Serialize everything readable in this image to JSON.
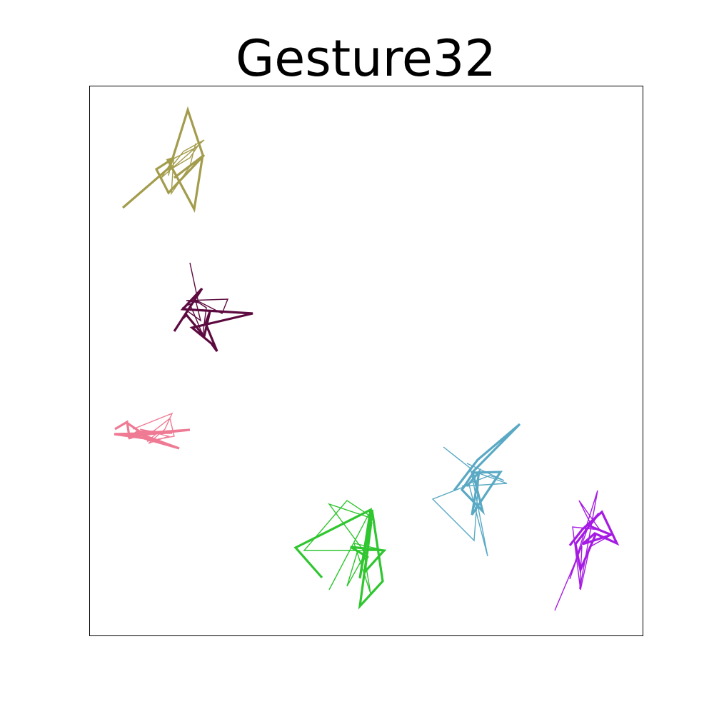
{
  "chart_data": {
    "type": "line",
    "title": "Gesture32",
    "xlabel": "",
    "ylabel": "",
    "grid": false,
    "axes_ticks": false,
    "xlim": [
      0,
      775
    ],
    "ylim": [
      770,
      0
    ],
    "series": [
      {
        "color": "#a39c4c",
        "strokes": [
          {
            "w": 3.2,
            "points": [
              [
                46,
                170
              ],
              [
                112,
                113
              ],
              [
                137,
                33
              ],
              [
                158,
                96
              ],
              [
                146,
                172
              ],
              [
                109,
                103
              ],
              [
                118,
                100
              ],
              [
                93,
                116
              ],
              [
                110,
                149
              ],
              [
                160,
                96
              ],
              [
                118,
                128
              ]
            ]
          },
          {
            "w": 1.4,
            "points": [
              [
                118,
                100
              ],
              [
                100,
                128
              ],
              [
                160,
                75
              ],
              [
                131,
                91
              ],
              [
                110,
                118
              ],
              [
                140,
                100
              ],
              [
                150,
                85
              ],
              [
                113,
                103
              ],
              [
                110,
                125
              ],
              [
                118,
                90
              ],
              [
                114,
                150
              ],
              [
                140,
                112
              ],
              [
                148,
                80
              ]
            ]
          }
        ]
      },
      {
        "color": "#5c0a40",
        "strokes": [
          {
            "w": 3.2,
            "points": [
              [
                118,
                343
              ],
              [
                157,
                283
              ],
              [
                130,
                312
              ],
              [
                228,
                318
              ],
              [
                143,
                338
              ],
              [
                170,
                360
              ],
              [
                178,
                371
              ],
              [
                162,
                332
              ],
              [
                168,
                315
              ],
              [
                160,
                350
              ],
              [
                135,
                320
              ],
              [
                130,
                325
              ]
            ]
          },
          {
            "w": 1.4,
            "points": [
              [
                140,
                247
              ],
              [
                152,
                303
              ],
              [
                135,
                300
              ],
              [
                193,
                298
              ],
              [
                185,
                318
              ],
              [
                150,
                300
              ],
              [
                130,
                310
              ],
              [
                155,
                328
              ],
              [
                148,
                300
              ],
              [
                163,
                310
              ],
              [
                158,
                348
              ],
              [
                140,
                305
              ]
            ]
          }
        ]
      },
      {
        "color": "#ef7a94",
        "strokes": [
          {
            "w": 3.2,
            "points": [
              [
                35,
                480
              ],
              [
                52,
                470
              ],
              [
                55,
                490
              ],
              [
                140,
                481
              ],
              [
                55,
                487
              ],
              [
                125,
                507
              ],
              [
                65,
                485
              ],
              [
                85,
                494
              ],
              [
                34,
                487
              ],
              [
                115,
                485
              ],
              [
                67,
                483
              ],
              [
                54,
                493
              ],
              [
                75,
                487
              ],
              [
                50,
                470
              ]
            ]
          },
          {
            "w": 1.4,
            "points": [
              [
                60,
                480
              ],
              [
                115,
                458
              ],
              [
                105,
                480
              ],
              [
                82,
                500
              ],
              [
                110,
                490
              ],
              [
                70,
                480
              ],
              [
                95,
                485
              ],
              [
                80,
                497
              ],
              [
                118,
                490
              ],
              [
                112,
                465
              ],
              [
                90,
                482
              ],
              [
                65,
                492
              ]
            ]
          }
        ]
      },
      {
        "color": "#2fc62f",
        "strokes": [
          {
            "w": 3.2,
            "points": [
              [
                325,
                688
              ],
              [
                288,
                646
              ],
              [
                393,
                593
              ],
              [
                378,
                689
              ],
              [
                395,
                593
              ],
              [
                410,
                693
              ],
              [
                378,
                728
              ],
              [
                394,
                610
              ],
              [
                385,
                680
              ],
              [
                412,
                650
              ],
              [
                365,
                645
              ],
              [
                390,
                660
              ]
            ]
          },
          {
            "w": 1.4,
            "points": [
              [
                335,
                705
              ],
              [
                390,
                600
              ],
              [
                360,
                580
              ],
              [
                300,
                650
              ],
              [
                414,
                650
              ],
              [
                370,
                640
              ],
              [
                393,
                710
              ],
              [
                383,
                650
              ],
              [
                335,
                585
              ],
              [
                395,
                605
              ],
              [
                388,
                650
              ],
              [
                360,
                700
              ],
              [
                375,
                650
              ]
            ]
          }
        ]
      },
      {
        "color": "#5aa9c4",
        "strokes": [
          {
            "w": 3.2,
            "points": [
              [
                510,
                566
              ],
              [
                543,
                523
              ],
              [
                602,
                473
              ],
              [
                536,
                540
              ],
              [
                550,
                595
              ],
              [
                521,
                565
              ],
              [
                537,
                541
              ],
              [
                575,
                540
              ],
              [
                535,
                600
              ],
              [
                545,
                540
              ],
              [
                528,
                560
              ]
            ]
          },
          {
            "w": 1.4,
            "points": [
              [
                495,
                505
              ],
              [
                533,
                535
              ],
              [
                557,
                658
              ],
              [
                531,
                558
              ],
              [
                480,
                578
              ],
              [
                538,
                636
              ],
              [
                545,
                542
              ],
              [
                584,
                556
              ],
              [
                521,
                560
              ],
              [
                560,
                545
              ],
              [
                580,
                552
              ],
              [
                528,
                528
              ]
            ]
          }
        ]
      },
      {
        "color": "#a51be3",
        "strokes": [
          {
            "w": 3.2,
            "points": [
              [
                672,
                643
              ],
              [
                690,
                620
              ],
              [
                717,
                596
              ],
              [
                738,
                640
              ],
              [
                707,
                626
              ],
              [
                690,
                641
              ],
              [
                715,
                633
              ],
              [
                730,
                628
              ],
              [
                698,
                615
              ],
              [
                713,
                598
              ],
              [
                680,
                641
              ],
              [
                687,
                677
              ],
              [
                708,
                628
              ]
            ]
          },
          {
            "w": 1.4,
            "points": [
              [
                651,
                734
              ],
              [
                689,
                644
              ],
              [
                686,
                704
              ],
              [
                711,
                566
              ],
              [
                672,
                690
              ],
              [
                700,
                610
              ],
              [
                685,
                580
              ],
              [
                714,
                621
              ],
              [
                676,
                617
              ],
              [
                687,
                705
              ],
              [
                700,
                645
              ],
              [
                727,
                630
              ]
            ]
          }
        ]
      }
    ]
  }
}
